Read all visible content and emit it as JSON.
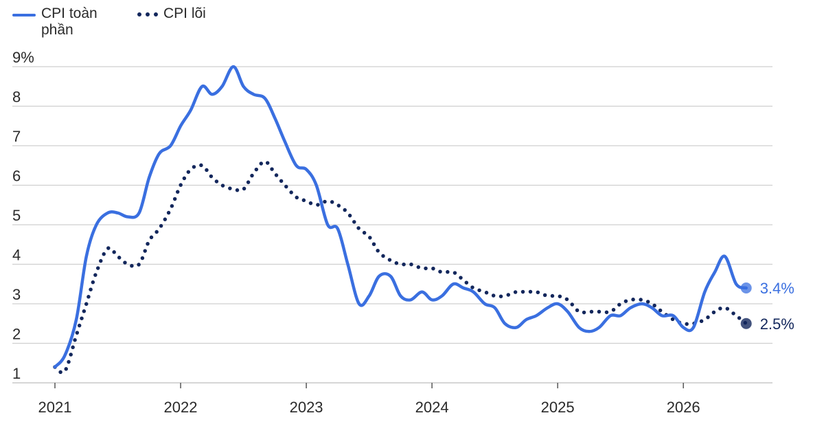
{
  "legend": {
    "headline": {
      "label": "CPI toàn phần",
      "color": "#3a6fe0"
    },
    "core": {
      "label": "CPI lõi",
      "color": "#13275c"
    }
  },
  "chart_data": {
    "type": "line",
    "ylim": [
      1,
      9
    ],
    "y_ticks": [
      {
        "value": 9,
        "label": "9%"
      },
      {
        "value": 8,
        "label": "8"
      },
      {
        "value": 7,
        "label": "7"
      },
      {
        "value": 6,
        "label": "6"
      },
      {
        "value": 5,
        "label": "5"
      },
      {
        "value": 4,
        "label": "4"
      },
      {
        "value": 3,
        "label": "3"
      },
      {
        "value": 2,
        "label": "2"
      },
      {
        "value": 1,
        "label": "1"
      }
    ],
    "xlim": [
      2021,
      2026.6
    ],
    "x_ticks": [
      {
        "value": 2021,
        "label": "2021"
      },
      {
        "value": 2022,
        "label": "2022"
      },
      {
        "value": 2023,
        "label": "2023"
      },
      {
        "value": 2024,
        "label": "2024"
      },
      {
        "value": 2025,
        "label": "2025"
      },
      {
        "value": 2026,
        "label": "2026"
      }
    ],
    "grid": true,
    "series": [
      {
        "name": "CPI toàn phần",
        "color": "#3a6fe0",
        "style": "solid",
        "end_label": "3.4%",
        "points": [
          [
            2021.0,
            1.4
          ],
          [
            2021.08,
            1.7
          ],
          [
            2021.17,
            2.6
          ],
          [
            2021.25,
            4.2
          ],
          [
            2021.33,
            5.0
          ],
          [
            2021.42,
            5.3
          ],
          [
            2021.5,
            5.3
          ],
          [
            2021.58,
            5.2
          ],
          [
            2021.67,
            5.3
          ],
          [
            2021.75,
            6.2
          ],
          [
            2021.83,
            6.8
          ],
          [
            2021.92,
            7.0
          ],
          [
            2022.0,
            7.5
          ],
          [
            2022.08,
            7.9
          ],
          [
            2022.17,
            8.5
          ],
          [
            2022.25,
            8.3
          ],
          [
            2022.33,
            8.5
          ],
          [
            2022.42,
            9.0
          ],
          [
            2022.5,
            8.5
          ],
          [
            2022.58,
            8.3
          ],
          [
            2022.67,
            8.2
          ],
          [
            2022.75,
            7.7
          ],
          [
            2022.83,
            7.1
          ],
          [
            2022.92,
            6.5
          ],
          [
            2023.0,
            6.4
          ],
          [
            2023.08,
            6.0
          ],
          [
            2023.17,
            5.0
          ],
          [
            2023.25,
            4.9
          ],
          [
            2023.33,
            4.0
          ],
          [
            2023.42,
            3.0
          ],
          [
            2023.5,
            3.2
          ],
          [
            2023.58,
            3.7
          ],
          [
            2023.67,
            3.7
          ],
          [
            2023.75,
            3.2
          ],
          [
            2023.83,
            3.1
          ],
          [
            2023.92,
            3.3
          ],
          [
            2024.0,
            3.1
          ],
          [
            2024.08,
            3.2
          ],
          [
            2024.17,
            3.5
          ],
          [
            2024.25,
            3.4
          ],
          [
            2024.33,
            3.3
          ],
          [
            2024.42,
            3.0
          ],
          [
            2024.5,
            2.9
          ],
          [
            2024.58,
            2.5
          ],
          [
            2024.67,
            2.4
          ],
          [
            2024.75,
            2.6
          ],
          [
            2024.83,
            2.7
          ],
          [
            2024.92,
            2.9
          ],
          [
            2025.0,
            3.0
          ],
          [
            2025.08,
            2.8
          ],
          [
            2025.17,
            2.4
          ],
          [
            2025.25,
            2.3
          ],
          [
            2025.33,
            2.4
          ],
          [
            2025.42,
            2.7
          ],
          [
            2025.5,
            2.7
          ],
          [
            2025.58,
            2.9
          ],
          [
            2025.67,
            3.0
          ],
          [
            2025.75,
            2.9
          ],
          [
            2025.83,
            2.7
          ],
          [
            2025.92,
            2.7
          ],
          [
            2026.0,
            2.4
          ],
          [
            2026.08,
            2.4
          ],
          [
            2026.17,
            3.3
          ],
          [
            2026.25,
            3.8
          ],
          [
            2026.33,
            4.2
          ],
          [
            2026.42,
            3.5
          ],
          [
            2026.5,
            3.4
          ]
        ]
      },
      {
        "name": "CPI lõi",
        "color": "#13275c",
        "style": "dotted",
        "end_label": "2.5%",
        "points": [
          [
            2021.0,
            1.4
          ],
          [
            2021.08,
            1.3
          ],
          [
            2021.17,
            2.2
          ],
          [
            2021.25,
            3.0
          ],
          [
            2021.33,
            3.8
          ],
          [
            2021.42,
            4.4
          ],
          [
            2021.5,
            4.2
          ],
          [
            2021.58,
            4.0
          ],
          [
            2021.67,
            4.0
          ],
          [
            2021.75,
            4.6
          ],
          [
            2021.83,
            4.9
          ],
          [
            2021.92,
            5.4
          ],
          [
            2022.0,
            6.0
          ],
          [
            2022.08,
            6.4
          ],
          [
            2022.17,
            6.5
          ],
          [
            2022.25,
            6.2
          ],
          [
            2022.33,
            6.0
          ],
          [
            2022.42,
            5.9
          ],
          [
            2022.5,
            5.9
          ],
          [
            2022.58,
            6.3
          ],
          [
            2022.67,
            6.6
          ],
          [
            2022.75,
            6.3
          ],
          [
            2022.83,
            6.0
          ],
          [
            2022.92,
            5.7
          ],
          [
            2023.0,
            5.6
          ],
          [
            2023.08,
            5.5
          ],
          [
            2023.17,
            5.6
          ],
          [
            2023.25,
            5.5
          ],
          [
            2023.33,
            5.3
          ],
          [
            2023.42,
            4.9
          ],
          [
            2023.5,
            4.7
          ],
          [
            2023.58,
            4.3
          ],
          [
            2023.67,
            4.1
          ],
          [
            2023.75,
            4.0
          ],
          [
            2023.83,
            4.0
          ],
          [
            2023.92,
            3.9
          ],
          [
            2024.0,
            3.9
          ],
          [
            2024.08,
            3.8
          ],
          [
            2024.17,
            3.8
          ],
          [
            2024.25,
            3.6
          ],
          [
            2024.33,
            3.4
          ],
          [
            2024.42,
            3.3
          ],
          [
            2024.5,
            3.2
          ],
          [
            2024.58,
            3.2
          ],
          [
            2024.67,
            3.3
          ],
          [
            2024.75,
            3.3
          ],
          [
            2024.83,
            3.3
          ],
          [
            2024.92,
            3.2
          ],
          [
            2025.0,
            3.2
          ],
          [
            2025.08,
            3.1
          ],
          [
            2025.17,
            2.8
          ],
          [
            2025.25,
            2.8
          ],
          [
            2025.33,
            2.8
          ],
          [
            2025.42,
            2.8
          ],
          [
            2025.5,
            3.0
          ],
          [
            2025.58,
            3.1
          ],
          [
            2025.67,
            3.1
          ],
          [
            2025.75,
            3.0
          ],
          [
            2025.83,
            2.8
          ],
          [
            2025.92,
            2.6
          ],
          [
            2026.0,
            2.5
          ],
          [
            2026.08,
            2.5
          ],
          [
            2026.17,
            2.6
          ],
          [
            2026.25,
            2.8
          ],
          [
            2026.33,
            2.9
          ],
          [
            2026.42,
            2.7
          ],
          [
            2026.5,
            2.5
          ]
        ]
      }
    ]
  }
}
